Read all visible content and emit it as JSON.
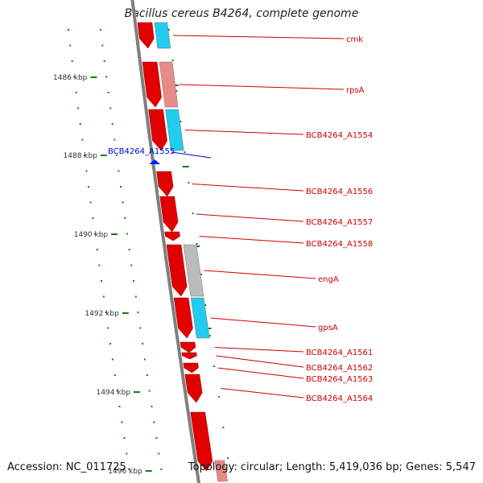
{
  "title": "Bacillus cereus B4264, complete genome",
  "footer": {
    "accession": "Accession: NC_011725",
    "summary": "Topology: circular; Length: 5,419,036 bp; Genes: 5,547"
  },
  "colors": {
    "background": "#ffffff",
    "backbone": "#7f7f7f",
    "tick": "#1a7a1a",
    "gene_label": "#cc0000",
    "highlight_label": "#0000cc",
    "cds": "#e00000",
    "cog_cyan": "#22ccee",
    "cog_pink": "#e88a8a",
    "cog_gray": "#bbbbbb"
  },
  "ticks": [
    "1486 kbp",
    "1488 kbp",
    "1490 kbp",
    "1492 kbp",
    "1494 kbp",
    "1496 kbp"
  ],
  "highlighted_gene": {
    "label": "BCB4264_A1555",
    "marker_color": "#0022ee"
  },
  "genes": [
    {
      "label": "cmk",
      "cog_color": "#22ccee"
    },
    {
      "label": "rpsA",
      "cog_color": "#e88a8a"
    },
    {
      "label": "BCB4264_A1554",
      "cog_color": "#22ccee"
    },
    {
      "label": "BCB4264_A1556",
      "cog_color": ""
    },
    {
      "label": "BCB4264_A1557",
      "cog_color": ""
    },
    {
      "label": "BCB4264_A1558",
      "cog_color": ""
    },
    {
      "label": "engA",
      "cog_color": "#bbbbbb"
    },
    {
      "label": "gpsA",
      "cog_color": "#22ccee"
    },
    {
      "label": "BCB4264_A1561",
      "cog_color": ""
    },
    {
      "label": "BCB4264_A1562",
      "cog_color": ""
    },
    {
      "label": "BCB4264_A1563",
      "cog_color": ""
    },
    {
      "label": "BCB4264_A1564",
      "cog_color": ""
    }
  ]
}
